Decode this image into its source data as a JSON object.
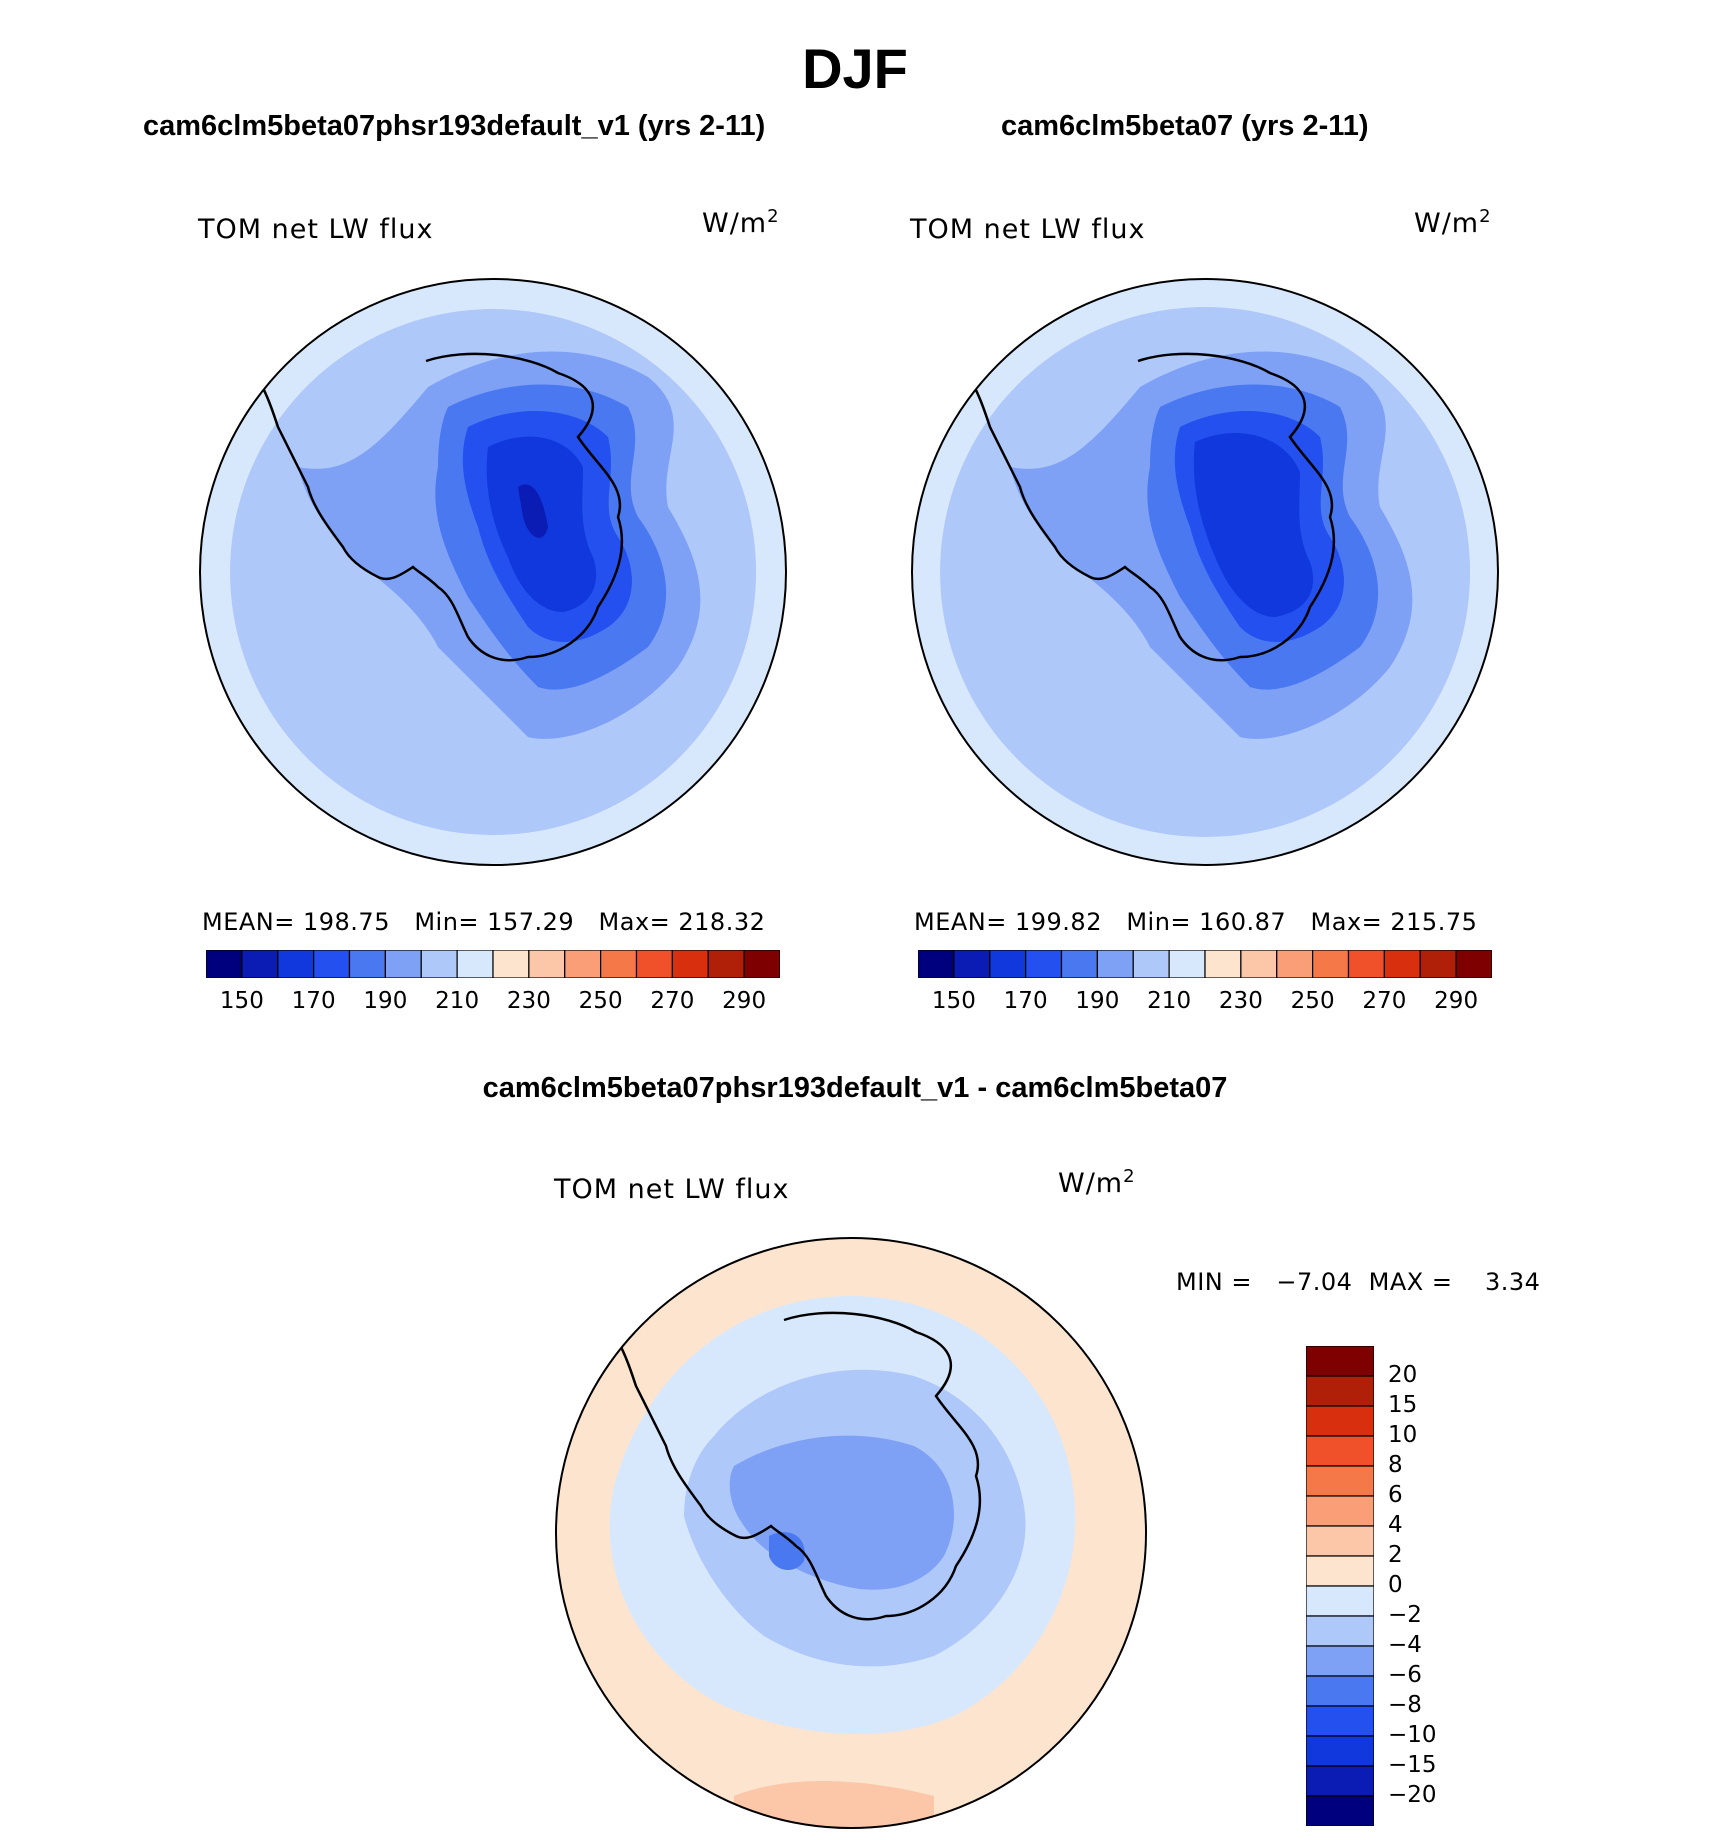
{
  "figure": {
    "season": "DJF",
    "left_title": "cam6clm5beta07phsr193default_v1 (yrs 2-11)",
    "right_title": "cam6clm5beta07 (yrs 2-11)",
    "diff_title": "cam6clm5beta07phsr193default_v1 - cam6clm5beta07"
  },
  "panels": {
    "left": {
      "variable": "TOM net LW flux",
      "units_base": "W/m",
      "units_exp": "2",
      "stats_line": "MEAN= 198.75   Min= 157.29   Max= 218.32"
    },
    "right": {
      "variable": "TOM net LW flux",
      "units_base": "W/m",
      "units_exp": "2",
      "stats_line": "MEAN= 199.82   Min= 160.87   Max= 215.75"
    },
    "diff": {
      "variable": "TOM net LW flux",
      "units_base": "W/m",
      "units_exp": "2",
      "stats_line": "MIN =   −7.04  MAX =    3.34"
    }
  },
  "colors": {
    "abs_scale": [
      "#00007f",
      "#0a1cb4",
      "#1038dc",
      "#2350ee",
      "#4a78f0",
      "#7ea1f6",
      "#afc8fa",
      "#d8e8fc",
      "#fde4cf",
      "#fcc6a8",
      "#f99e76",
      "#f57848",
      "#f0502a",
      "#d8300e",
      "#b02008",
      "#7f0000"
    ],
    "diff_scale": [
      "#00007f",
      "#0a1cb4",
      "#1038dc",
      "#2350ee",
      "#4a78f0",
      "#7ea1f6",
      "#afc8fa",
      "#d8e8fc",
      "#fde4cf",
      "#fcc6a8",
      "#f99e76",
      "#f57848",
      "#f0502a",
      "#d8300e",
      "#b02008",
      "#7f0000"
    ],
    "coastline": "#000000"
  },
  "chart_data": [
    {
      "type": "heatmap",
      "projection": "south-polar-stereographic",
      "title": "cam6clm5beta07phsr193default_v1 (yrs 2-11)",
      "variable": "TOM net LW flux",
      "units": "W/m2",
      "mean": 198.75,
      "min": 157.29,
      "max": 218.32,
      "colorbar_levels": [
        145,
        150,
        160,
        170,
        180,
        190,
        200,
        210,
        220,
        230,
        240,
        250,
        260,
        270,
        280,
        290
      ],
      "colorbar_tick_labels": [
        "150",
        "170",
        "190",
        "210",
        "230",
        "250",
        "270",
        "290"
      ]
    },
    {
      "type": "heatmap",
      "projection": "south-polar-stereographic",
      "title": "cam6clm5beta07 (yrs 2-11)",
      "variable": "TOM net LW flux",
      "units": "W/m2",
      "mean": 199.82,
      "min": 160.87,
      "max": 215.75,
      "colorbar_levels": [
        145,
        150,
        160,
        170,
        180,
        190,
        200,
        210,
        220,
        230,
        240,
        250,
        260,
        270,
        280,
        290
      ],
      "colorbar_tick_labels": [
        "150",
        "170",
        "190",
        "210",
        "230",
        "250",
        "270",
        "290"
      ]
    },
    {
      "type": "heatmap",
      "projection": "south-polar-stereographic",
      "title": "cam6clm5beta07phsr193default_v1 - cam6clm5beta07",
      "variable": "TOM net LW flux",
      "units": "W/m2",
      "min": -7.04,
      "max": 3.34,
      "colorbar_levels": [
        -20,
        -15,
        -10,
        -8,
        -6,
        -4,
        -2,
        0,
        2,
        4,
        6,
        8,
        10,
        15,
        20
      ],
      "colorbar_tick_labels": [
        "20",
        "15",
        "10",
        "8",
        "6",
        "4",
        "2",
        "0",
        "−2",
        "−4",
        "−6",
        "−8",
        "−10",
        "−15",
        "−20"
      ]
    }
  ]
}
